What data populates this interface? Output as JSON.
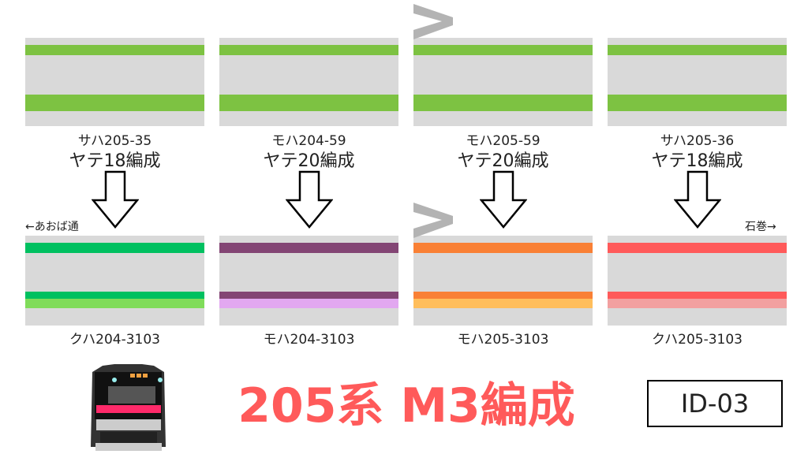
{
  "cars_top": [
    {
      "number": "サハ205-35",
      "formation": "ヤテ18編成"
    },
    {
      "number": "モハ204-59",
      "formation": "ヤテ20編成"
    },
    {
      "number": "モハ205-59",
      "formation": "ヤテ20編成"
    },
    {
      "number": "サハ205-36",
      "formation": "ヤテ18編成"
    }
  ],
  "top_color": "#7dc242",
  "cars_bottom": [
    {
      "number": "クハ204-3103",
      "colors": [
        "#00c060",
        "#00c060",
        "#80dc5a"
      ]
    },
    {
      "number": "モハ204-3103",
      "colors": [
        "#834574",
        "#834574",
        "#e2a8f0"
      ]
    },
    {
      "number": "モハ205-3103",
      "colors": [
        "#f98035",
        "#f98035",
        "#ffbe5c"
      ]
    },
    {
      "number": "クハ205-3103",
      "colors": [
        "#ff5a5a",
        "#ff5a5a",
        "#f2a0a0"
      ]
    }
  ],
  "direction_left": "←あおば通",
  "direction_right": "石巻→",
  "title": "205系 M3編成",
  "id_label": "ID-03"
}
